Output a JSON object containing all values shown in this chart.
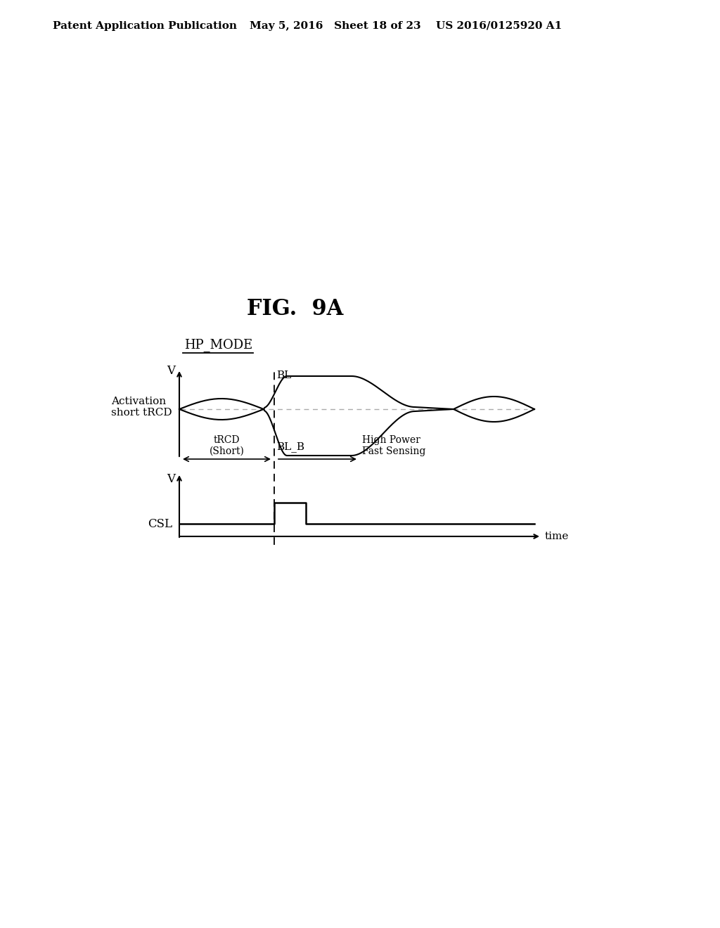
{
  "header_left": "Patent Application Publication",
  "header_mid": "May 5, 2016   Sheet 18 of 23",
  "header_right": "US 2016/0125920 A1",
  "hp_mode_label": "HP_MODE",
  "fig_label": "FIG.  9A",
  "activation_label": "Activation\nshort tRCD",
  "BL_label": "BL",
  "BLB_label": "BL_B",
  "CSL_label": "CSL",
  "V_label1": "V",
  "V_label2": "V",
  "tRCD_label": "tRCD\n(Short)",
  "high_power_label": "High Power\nFast Sensing",
  "time_label": "time",
  "bg_color": "#ffffff",
  "line_color": "#000000",
  "dashed_color": "#aaaaaa"
}
